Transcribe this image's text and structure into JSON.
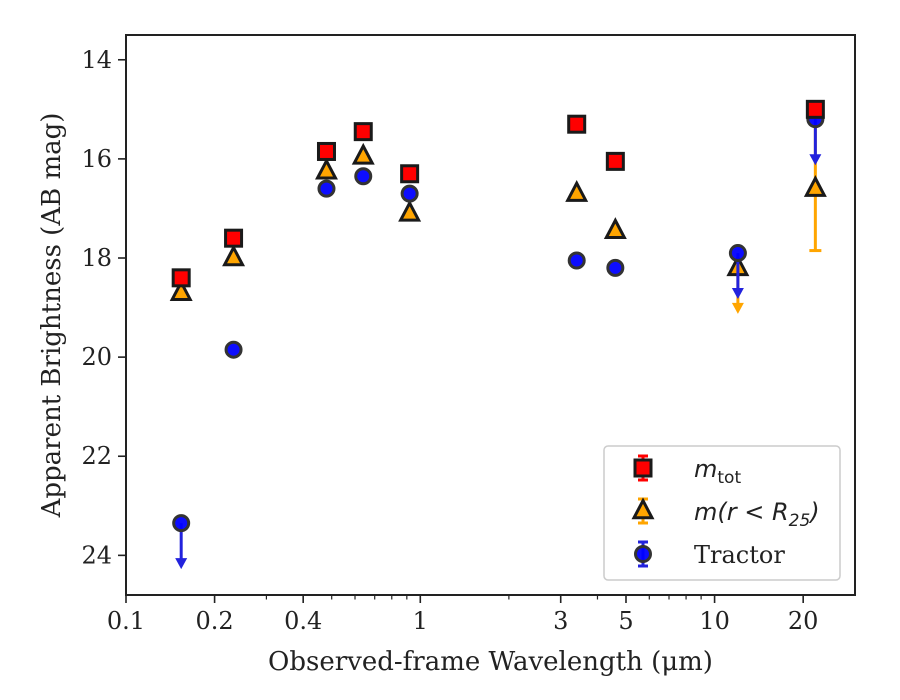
{
  "chart_data": {
    "type": "scatter",
    "xlabel": "Observed-frame Wavelength (μm)",
    "ylabel": "Apparent Brightness (AB mag)",
    "x_scale": "log",
    "xlim": [
      0.1,
      30
    ],
    "ylim": [
      24.8,
      13.5
    ],
    "y_inverted": true,
    "x_ticks": [
      0.1,
      0.2,
      0.4,
      1,
      3,
      5,
      10,
      20
    ],
    "x_tick_labels": [
      "0.1",
      "0.2",
      "0.4",
      "1",
      "3",
      "5",
      "10",
      "20"
    ],
    "y_ticks": [
      14,
      16,
      18,
      20,
      22,
      24
    ],
    "y_tick_labels": [
      "14",
      "16",
      "18",
      "20",
      "22",
      "24"
    ],
    "grid": false,
    "legend_position": "bottom-right",
    "series": [
      {
        "key": "mtot",
        "name": "m_tot",
        "marker": "square",
        "face_color": "#ff0000",
        "edge_color": "#1a1a1a",
        "error_color": "#ff0000",
        "points": [
          {
            "x": 0.154,
            "y": 18.4
          },
          {
            "x": 0.232,
            "y": 17.6
          },
          {
            "x": 0.48,
            "y": 15.85
          },
          {
            "x": 0.64,
            "y": 15.45
          },
          {
            "x": 0.92,
            "y": 16.3
          },
          {
            "x": 3.4,
            "y": 15.3
          },
          {
            "x": 4.6,
            "y": 16.05
          },
          {
            "x": 22.0,
            "y": 15.0
          }
        ]
      },
      {
        "key": "mr25",
        "name": "m(r < R25)",
        "marker": "triangle",
        "face_color": "#ffa500",
        "edge_color": "#1a1a1a",
        "error_color": "#ffa500",
        "points": [
          {
            "x": 0.154,
            "y": 18.7
          },
          {
            "x": 0.232,
            "y": 18.0
          },
          {
            "x": 0.48,
            "y": 16.25
          },
          {
            "x": 0.64,
            "y": 15.95
          },
          {
            "x": 0.92,
            "y": 17.1
          },
          {
            "x": 3.4,
            "y": 16.7
          },
          {
            "x": 4.6,
            "y": 17.45
          },
          {
            "x": 12.0,
            "y": 18.2,
            "upper_limit": true
          },
          {
            "x": 22.0,
            "y": 16.6,
            "yerr": [
              1.25,
              1.25
            ]
          }
        ]
      },
      {
        "key": "tractor",
        "name": "Tractor",
        "marker": "circle",
        "face_color": "#0000ff",
        "edge_color": "#333333",
        "error_color": "#2222dd",
        "points": [
          {
            "x": 0.154,
            "y": 23.35,
            "upper_limit": true
          },
          {
            "x": 0.232,
            "y": 19.85
          },
          {
            "x": 0.48,
            "y": 16.6
          },
          {
            "x": 0.64,
            "y": 16.35
          },
          {
            "x": 0.92,
            "y": 16.7
          },
          {
            "x": 3.4,
            "y": 18.05
          },
          {
            "x": 4.6,
            "y": 18.2
          },
          {
            "x": 12.0,
            "y": 17.9,
            "upper_limit": true
          },
          {
            "x": 22.0,
            "y": 15.2,
            "upper_limit": true
          }
        ]
      }
    ],
    "legend": [
      {
        "key": "mtot",
        "base": "m",
        "sub": "tot",
        "plain": ""
      },
      {
        "key": "mr25",
        "base": "m(r < R",
        "sub": "25",
        "after": ")",
        "plain": ""
      },
      {
        "key": "tractor",
        "base": "",
        "sub": "",
        "plain": "Tractor"
      }
    ]
  }
}
